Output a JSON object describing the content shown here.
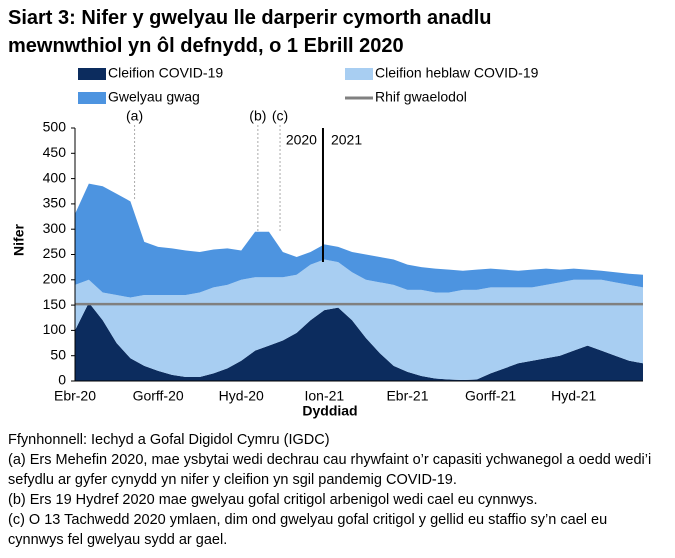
{
  "chart_data": {
    "type": "stacked-area",
    "title": "Siart 3: Nifer y gwelyau lle darperir cymorth anadlu mewnwthiol yn ôl defnydd, o 1 Ebrill 2020",
    "x_label": "Dyddiad",
    "y_label": "Nifer",
    "categories": [
      "Ebr-20",
      null,
      null,
      null,
      null,
      null,
      "Gorff-20",
      null,
      null,
      null,
      null,
      null,
      "Hyd-20",
      null,
      null,
      null,
      null,
      null,
      "Ion-21",
      null,
      null,
      null,
      null,
      null,
      "Ebr-21",
      null,
      null,
      null,
      null,
      null,
      "Gorff-21",
      null,
      null,
      null,
      null,
      null,
      "Hyd-21",
      null,
      null,
      null,
      null,
      null
    ],
    "series": [
      {
        "name": "Cleifion COVID-19",
        "color": "#0c2c5e",
        "values": [
          100,
          155,
          120,
          75,
          45,
          30,
          20,
          12,
          8,
          8,
          15,
          25,
          40,
          60,
          70,
          80,
          95,
          120,
          140,
          145,
          120,
          85,
          55,
          30,
          18,
          10,
          5,
          3,
          2,
          3,
          15,
          25,
          35,
          40,
          45,
          50,
          60,
          70,
          60,
          50,
          40,
          35
        ]
      },
      {
        "name": "Cleifion heblaw COVID-19",
        "color": "#a8cef2",
        "values": [
          90,
          45,
          55,
          95,
          120,
          140,
          150,
          158,
          162,
          167,
          170,
          165,
          160,
          145,
          135,
          125,
          115,
          110,
          100,
          90,
          95,
          115,
          140,
          160,
          162,
          170,
          170,
          172,
          178,
          177,
          170,
          160,
          150,
          145,
          145,
          145,
          140,
          130,
          140,
          145,
          150,
          150
        ]
      },
      {
        "name": "Gwelyau gwag",
        "color": "#4d94e0",
        "values": [
          140,
          190,
          210,
          200,
          190,
          105,
          95,
          92,
          88,
          80,
          75,
          72,
          58,
          90,
          90,
          50,
          35,
          25,
          30,
          30,
          40,
          50,
          50,
          50,
          50,
          45,
          47,
          45,
          38,
          40,
          37,
          35,
          33,
          35,
          32,
          25,
          22,
          20,
          18,
          20,
          22,
          25
        ]
      }
    ],
    "baseline": {
      "name": "Rhif gwaelodol",
      "value": 152,
      "color": "#808080"
    },
    "annotations": [
      "(a)",
      "(b)",
      "(c)",
      "2020",
      "2021"
    ],
    "ylim": [
      0,
      500
    ],
    "yticks": [
      0,
      50,
      100,
      150,
      200,
      250,
      300,
      350,
      400,
      450,
      500
    ],
    "grid": false,
    "notes": [
      "Ffynhonnell: Iechyd a Gofal Digidol Cymru (IGDC)",
      "(a) Ers Mehefin 2020, mae ysbytai wedi dechrau cau rhywfaint o’r capasiti ychwanegol a oedd wedi’i sefydlu ar gyfer cynydd yn nifer y cleifion yn sgil pandemig COVID-19.",
      "(b) Ers 19 Hydref 2020 mae gwelyau gofal critigol arbenigol wedi cael eu cynnwys.",
      "(c) O 13 Tachwedd 2020 ymlaen, dim ond gwelyau gofal critigol y gellid eu staffio sy’n cael eu cynnwys fel gwelyau sydd ar gael."
    ]
  }
}
